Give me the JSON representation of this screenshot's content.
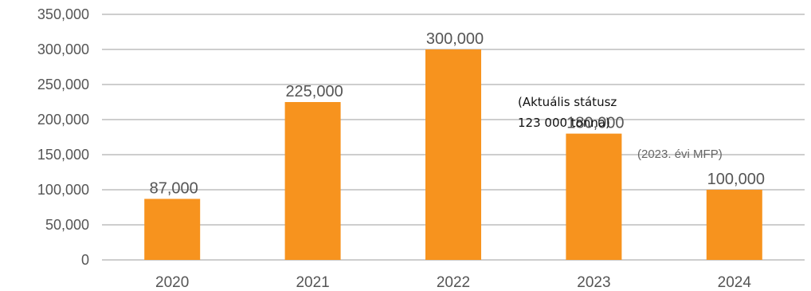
{
  "chart_data": {
    "type": "bar",
    "title": "",
    "xlabel": "",
    "ylabel": "",
    "categories": [
      "2020",
      "2021",
      "2022",
      "2023",
      "2024"
    ],
    "values": [
      87000,
      225000,
      300000,
      180000,
      100000
    ],
    "data_labels": [
      "87,000",
      "225,000",
      "300,000",
      "180,000",
      "100,000"
    ],
    "ylim": [
      0,
      350000
    ],
    "yticks": [
      0,
      50000,
      100000,
      150000,
      200000,
      250000,
      300000,
      350000
    ],
    "ytick_labels": [
      "0",
      "50,000",
      "100,000",
      "150,000",
      "200,000",
      "250,000",
      "300,000",
      "350,000"
    ],
    "grid": true,
    "legend": "none",
    "bar_color": "#F7931E",
    "annotations": {
      "status_line1": "(Aktuális státusz",
      "status_line2": "123 000 tonna)",
      "mfp": "(2023. évi MFP)"
    }
  }
}
